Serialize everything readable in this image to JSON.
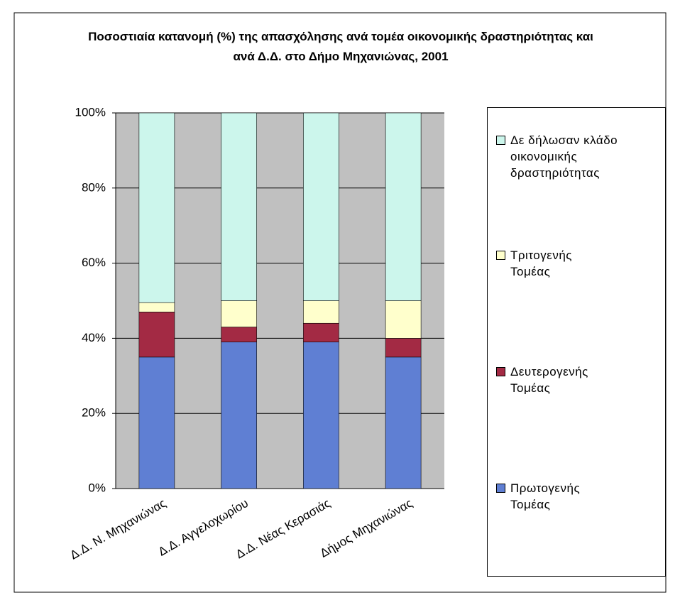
{
  "chart_data": {
    "type": "stacked_bar",
    "title": "Ποσοστιαία κατανομή (%) της απασχόλησης ανά τομέα οικονομικής δραστηριότητας και ανά Δ.Δ. στο Δήμο Μηχανιώνας, 2001",
    "categories": [
      "Δ.Δ. Ν. Μηχανιώνας",
      "Δ.Δ. Αγγελοχωρίου",
      "Δ.Δ. Νέας Κερασιάς",
      "Δήμος Μηχανιώνας"
    ],
    "series": [
      {
        "name": "Πρωτογενής Τομέας",
        "color": "#5f7fd3",
        "values": [
          35,
          39,
          39,
          35
        ]
      },
      {
        "name": "Δευτερογενής Τομέας",
        "color": "#a32a44",
        "values": [
          12,
          4,
          5,
          5
        ]
      },
      {
        "name": "Τριτογενής Τομέας",
        "color": "#ffffcc",
        "values": [
          2.5,
          7,
          6,
          10
        ]
      },
      {
        "name": "Δε δήλωσαν κλάδο οικονομικής δραστηριότητας",
        "color": "#ccf6ec",
        "values": [
          50.5,
          50,
          50,
          50
        ]
      }
    ],
    "ylim": [
      0,
      100
    ],
    "yticks": [
      {
        "value": 0,
        "label": "0%"
      },
      {
        "value": 20,
        "label": "20%"
      },
      {
        "value": 40,
        "label": "40%"
      },
      {
        "value": 60,
        "label": "60%"
      },
      {
        "value": 80,
        "label": "80%"
      },
      {
        "value": 100,
        "label": "100%"
      }
    ],
    "grid": true,
    "legend": "right"
  }
}
